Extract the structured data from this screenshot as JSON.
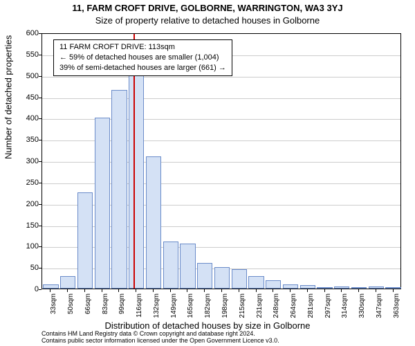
{
  "chart": {
    "type": "histogram",
    "title_main": "11, FARM CROFT DRIVE, GOLBORNE, WARRINGTON, WA3 3YJ",
    "title_sub": "Size of property relative to detached houses in Golborne",
    "y_axis_label": "Number of detached properties",
    "x_axis_label": "Distribution of detached houses by size in Golborne",
    "background_color": "#ffffff",
    "grid_color": "#cccccc",
    "bar_fill": "#d4e1f5",
    "bar_border": "#6a8bc9",
    "marker_color": "#cc0000",
    "marker_value": 113,
    "y_ticks": [
      0,
      50,
      100,
      150,
      200,
      250,
      300,
      350,
      400,
      450,
      500,
      550,
      600
    ],
    "ylim": [
      0,
      600
    ],
    "x_tick_labels": [
      "33sqm",
      "50sqm",
      "66sqm",
      "83sqm",
      "99sqm",
      "116sqm",
      "132sqm",
      "149sqm",
      "165sqm",
      "182sqm",
      "198sqm",
      "215sqm",
      "231sqm",
      "248sqm",
      "264sqm",
      "281sqm",
      "297sqm",
      "314sqm",
      "330sqm",
      "347sqm",
      "363sqm"
    ],
    "values": [
      10,
      30,
      225,
      400,
      465,
      560,
      310,
      110,
      105,
      60,
      50,
      45,
      30,
      20,
      10,
      8,
      2,
      5,
      2,
      5,
      2
    ],
    "annotation_lines": [
      "11 FARM CROFT DRIVE: 113sqm",
      "← 59% of detached houses are smaller (1,004)",
      "39% of semi-detached houses are larger (661) →"
    ],
    "footer_line1": "Contains HM Land Registry data © Crown copyright and database right 2024.",
    "footer_line2": "Contains public sector information licensed under the Open Government Licence v3.0."
  }
}
